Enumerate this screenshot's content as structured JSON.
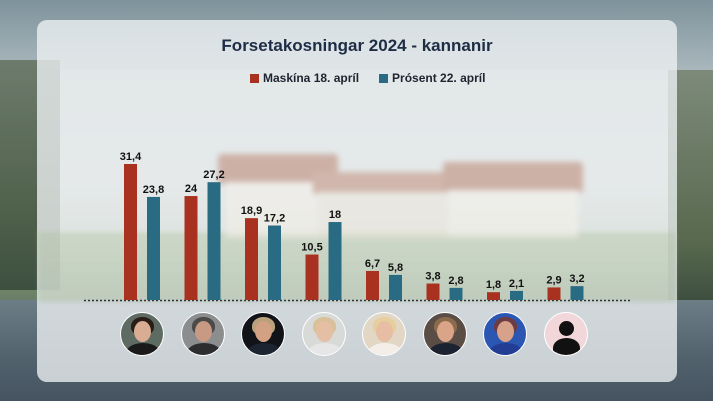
{
  "title": "Forsetakosningar 2024 - kannanir",
  "colors": {
    "maskina": "#a8321f",
    "prosent": "#2a6b84"
  },
  "chart_data": {
    "type": "bar",
    "title": "Forsetakosningar 2024 - kannanir",
    "categories": [
      "",
      "",
      "",
      "",
      "",
      "",
      "",
      ""
    ],
    "series": [
      {
        "name": "Maskína 18. apríl",
        "values": [
          31.4,
          24,
          18.9,
          10.5,
          6.7,
          3.8,
          1.8,
          2.9
        ],
        "labels": [
          "31,4",
          "24",
          "18,9",
          "10,5",
          "6,7",
          "3,8",
          "1,8",
          "2,9"
        ]
      },
      {
        "name": "Prósent 22. apríl",
        "values": [
          23.8,
          27.2,
          17.2,
          18,
          5.8,
          2.8,
          2.1,
          3.2
        ],
        "labels": [
          "23,8",
          "27,2",
          "17,2",
          "18",
          "5,8",
          "2,8",
          "2,1",
          "3,2"
        ]
      }
    ],
    "ylim": [
      0,
      31.4
    ],
    "xlabel": "",
    "ylabel": "",
    "grid": false,
    "legend": "top-center",
    "baseline": "dotted"
  },
  "avatars": [
    {
      "icon": "candidate-1-portrait-icon",
      "skin": "#d9ad94",
      "hair": "#2a1d17",
      "body": "#1a1a1a",
      "bg": "#5e6b62"
    },
    {
      "icon": "candidate-2-portrait-icon",
      "skin": "#c89a84",
      "hair": "#4c4a48",
      "body": "#2d2d30",
      "bg": "#8b8d8f"
    },
    {
      "icon": "candidate-3-portrait-icon",
      "skin": "#d2a083",
      "hair": "#b9a17b",
      "body": "#1d2431",
      "bg": "#111318"
    },
    {
      "icon": "candidate-4-portrait-icon",
      "skin": "#e4bfa3",
      "hair": "#d8c099",
      "body": "#e6e6e6",
      "bg": "#d8dad8"
    },
    {
      "icon": "candidate-5-portrait-icon",
      "skin": "#e7bea3",
      "hair": "#e6cf9d",
      "body": "#f3efe8",
      "bg": "#e2d6c4"
    },
    {
      "icon": "candidate-6-portrait-icon",
      "skin": "#d9a488",
      "hair": "#8b6b4c",
      "body": "#1b2230",
      "bg": "#5a4d45"
    },
    {
      "icon": "candidate-7-portrait-icon",
      "skin": "#d7a18a",
      "hair": "#6d3c43",
      "body": "#233d94",
      "bg": "#2b57b3"
    },
    {
      "icon": "candidate-8-placeholder-icon",
      "placeholder": true
    }
  ]
}
